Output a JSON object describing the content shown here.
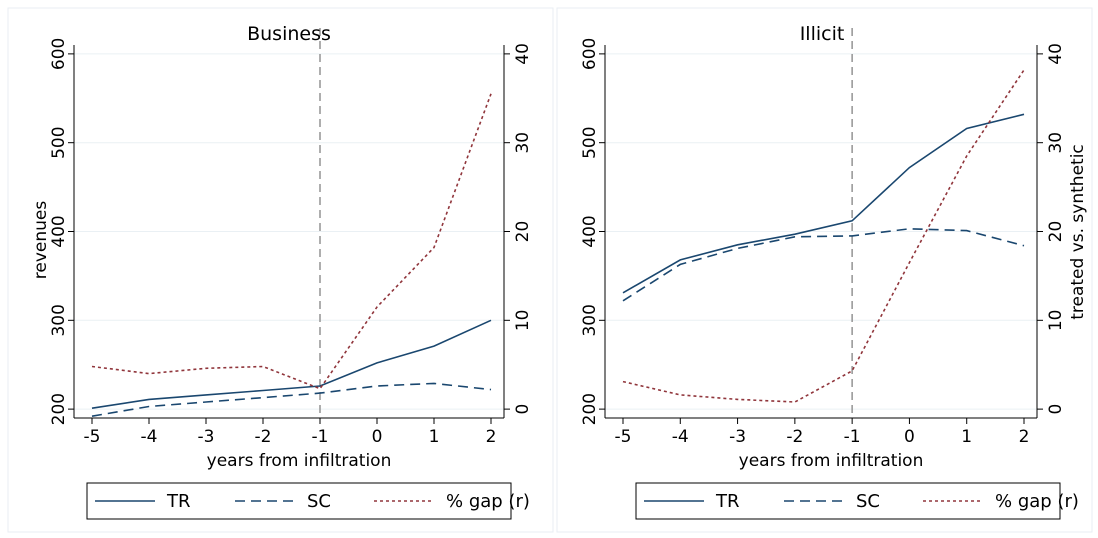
{
  "chart_data": [
    {
      "type": "line",
      "title": "Business",
      "xlabel": "years from infiltration",
      "ylabel": "revenues",
      "y2label": "",
      "x": [
        -5,
        -4,
        -3,
        -2,
        -1,
        0,
        1,
        2
      ],
      "x_ticks": [
        "-5",
        "-4",
        "-3",
        "-2",
        "-1",
        "0",
        "1",
        "2"
      ],
      "ylim": [
        190,
        610
      ],
      "y_ticks": [
        200,
        300,
        400,
        500,
        600
      ],
      "y2lim": [
        -1,
        41
      ],
      "y2_ticks": [
        0,
        10,
        20,
        30,
        40
      ],
      "reference_line_x": -1,
      "series": [
        {
          "name": "TR",
          "axis": "left",
          "style": "solid",
          "color": "#1a476f",
          "values": [
            201,
            211,
            216,
            221,
            226,
            252,
            271,
            300
          ]
        },
        {
          "name": "SC",
          "axis": "left",
          "style": "dash",
          "color": "#1a476f",
          "values": [
            192,
            203,
            208,
            213,
            218,
            226,
            229,
            222
          ]
        },
        {
          "name": "% gap (r)",
          "axis": "right",
          "style": "dot",
          "color": "#90353b",
          "values": [
            4.8,
            4.0,
            4.6,
            4.8,
            2.3,
            11.5,
            18.2,
            35.5
          ]
        }
      ],
      "legend": [
        "TR",
        "SC",
        "% gap (r)"
      ]
    },
    {
      "type": "line",
      "title": "Illicit",
      "xlabel": "years from infiltration",
      "ylabel": "",
      "y2label": "treated vs. synthetic",
      "x": [
        -5,
        -4,
        -3,
        -2,
        -1,
        0,
        1,
        2
      ],
      "x_ticks": [
        "-5",
        "-4",
        "-3",
        "-2",
        "-1",
        "0",
        "1",
        "2"
      ],
      "ylim": [
        190,
        610
      ],
      "y_ticks": [
        200,
        300,
        400,
        500,
        600
      ],
      "y2lim": [
        -1,
        41
      ],
      "y2_ticks": [
        0,
        10,
        20,
        30,
        40
      ],
      "reference_line_x": -1,
      "series": [
        {
          "name": "TR",
          "axis": "left",
          "style": "solid",
          "color": "#1a476f",
          "values": [
            331,
            368,
            385,
            397,
            412,
            472,
            516,
            532
          ]
        },
        {
          "name": "SC",
          "axis": "left",
          "style": "dash",
          "color": "#1a476f",
          "values": [
            322,
            363,
            381,
            394,
            395,
            403,
            401,
            384
          ]
        },
        {
          "name": "% gap (r)",
          "axis": "right",
          "style": "dot",
          "color": "#90353b",
          "values": [
            3.1,
            1.6,
            1.1,
            0.8,
            4.3,
            16.5,
            28.5,
            38.2
          ]
        }
      ],
      "legend": [
        "TR",
        "SC",
        "% gap (r)"
      ]
    }
  ]
}
